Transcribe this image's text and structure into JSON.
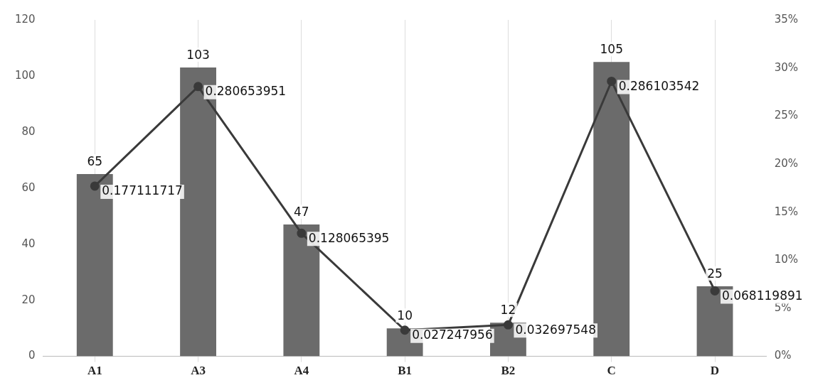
{
  "chart_data": {
    "type": "bar",
    "categories": [
      "A1",
      "A3",
      "A4",
      "B1",
      "B2",
      "C",
      "D"
    ],
    "series": [
      {
        "color": "#6b6b6b",
        "values": [
          65,
          103,
          47,
          10,
          12,
          105,
          25
        ]
      },
      {
        "type": "line",
        "axis": "y2",
        "color": "#3a3a3a",
        "marker": "circle",
        "values": [
          0.177111717,
          0.280653951,
          0.128065395,
          0.027247956,
          0.032697548,
          0.286103542,
          0.068119891
        ]
      }
    ],
    "ylim": [
      0,
      120
    ],
    "yticks": [
      0,
      20,
      40,
      60,
      80,
      100,
      120
    ],
    "y2lim": [
      0,
      0.35
    ],
    "y2ticks": [
      {
        "value": 0,
        "label": "0%"
      },
      {
        "value": 0.05,
        "label": "5%"
      },
      {
        "value": 0.1,
        "label": "10%"
      },
      {
        "value": 0.15,
        "label": "15%"
      },
      {
        "value": 0.2,
        "label": "20%"
      },
      {
        "value": 0.25,
        "label": "25%"
      },
      {
        "value": 0.3,
        "label": "30%"
      },
      {
        "value": 0.35,
        "label": "35%"
      }
    ],
    "grid": "x",
    "legend": false,
    "data_labels": true
  }
}
